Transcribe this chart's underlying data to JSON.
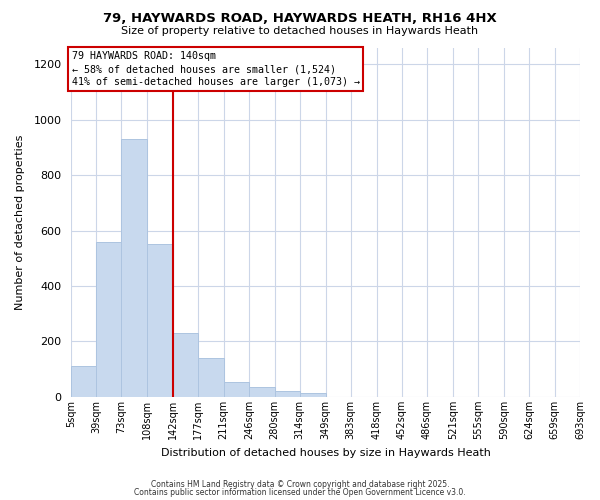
{
  "title": "79, HAYWARDS ROAD, HAYWARDS HEATH, RH16 4HX",
  "subtitle": "Size of property relative to detached houses in Haywards Heath",
  "xlabel": "Distribution of detached houses by size in Haywards Heath",
  "ylabel": "Number of detached properties",
  "bin_edges": [
    5,
    39,
    73,
    108,
    142,
    177,
    211,
    246,
    280,
    314,
    349,
    383,
    418,
    452,
    486,
    521,
    555,
    590,
    624,
    659,
    693
  ],
  "bin_labels": [
    "5sqm",
    "39sqm",
    "73sqm",
    "108sqm",
    "142sqm",
    "177sqm",
    "211sqm",
    "246sqm",
    "280sqm",
    "314sqm",
    "349sqm",
    "383sqm",
    "418sqm",
    "452sqm",
    "486sqm",
    "521sqm",
    "555sqm",
    "590sqm",
    "624sqm",
    "659sqm",
    "693sqm"
  ],
  "bar_heights": [
    110,
    560,
    930,
    550,
    230,
    140,
    55,
    35,
    20,
    15,
    0,
    0,
    0,
    0,
    0,
    0,
    0,
    0,
    0,
    0
  ],
  "bar_color": "#c8d9ee",
  "bar_edge_color": "#adc4e0",
  "grid_color": "#ccd6e8",
  "vline_x": 142,
  "vline_color": "#cc0000",
  "annotation_title": "79 HAYWARDS ROAD: 140sqm",
  "annotation_line1": "← 58% of detached houses are smaller (1,524)",
  "annotation_line2": "41% of semi-detached houses are larger (1,073) →",
  "annotation_box_facecolor": "#ffffff",
  "annotation_box_edgecolor": "#cc0000",
  "ylim": [
    0,
    1260
  ],
  "yticks": [
    0,
    200,
    400,
    600,
    800,
    1000,
    1200
  ],
  "xlim_min": 5,
  "xlim_max": 693,
  "footnote1": "Contains HM Land Registry data © Crown copyright and database right 2025.",
  "footnote2": "Contains public sector information licensed under the Open Government Licence v3.0.",
  "bg_color": "#ffffff"
}
